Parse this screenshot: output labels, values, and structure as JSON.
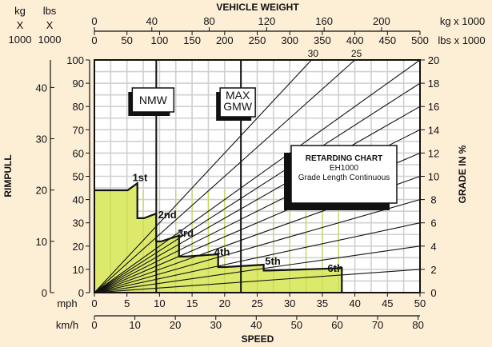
{
  "chart_data": {
    "type": "line",
    "title": "RETARDING CHART",
    "subtitle": "EH1000",
    "note": "Grade Length Continuous",
    "top_axis_title": "VEHICLE WEIGHT",
    "top_axis": {
      "kg_label": [
        "kg",
        "X",
        "1000"
      ],
      "lbs_label": [
        "lbs",
        "X",
        "1000"
      ],
      "kg_unit": "kg x 1000",
      "lbs_unit": "lbs x 1000",
      "kg_ticks": [
        "0",
        "40",
        "80",
        "120",
        "160",
        "200"
      ],
      "kg_values": [
        0,
        40,
        80,
        120,
        160,
        200
      ],
      "lbs_ticks": [
        "0",
        "50",
        "100",
        "150",
        "200",
        "250",
        "300",
        "350",
        "400",
        "450",
        "500"
      ],
      "lbs_values": [
        0,
        50,
        100,
        150,
        200,
        250,
        300,
        350,
        400,
        450,
        500
      ],
      "range_lbs": [
        0,
        500
      ]
    },
    "left_axis": {
      "title": "RIMPULL",
      "kg_ticks": [
        "0",
        "10",
        "20",
        "30",
        "40"
      ],
      "kg_values": [
        0,
        10,
        20,
        30,
        40
      ],
      "lbs_ticks": [
        "0",
        "10",
        "20",
        "30",
        "40",
        "50",
        "60",
        "70",
        "80",
        "90",
        "100"
      ],
      "lbs_values": [
        0,
        10,
        20,
        30,
        40,
        50,
        60,
        70,
        80,
        90,
        100
      ],
      "range_lbs": [
        0,
        100
      ]
    },
    "right_axis": {
      "title": "GRADE IN %",
      "ticks": [
        "0",
        "2",
        "4",
        "6",
        "8",
        "10",
        "12",
        "14",
        "16",
        "18",
        "20"
      ],
      "values": [
        0,
        2,
        4,
        6,
        8,
        10,
        12,
        14,
        16,
        18,
        20
      ]
    },
    "bottom_axis": {
      "title": "SPEED",
      "mph_label": "mph",
      "kmh_label": "km/h",
      "mph_ticks": [
        "0",
        "5",
        "10",
        "15",
        "20",
        "25",
        "30",
        "35",
        "40",
        "45",
        "50"
      ],
      "mph_values": [
        0,
        5,
        10,
        15,
        20,
        25,
        30,
        35,
        40,
        45,
        50
      ],
      "kmh_ticks": [
        "0",
        "10",
        "20",
        "30",
        "40",
        "50",
        "60",
        "70",
        "80"
      ],
      "kmh_values": [
        0,
        10,
        20,
        30,
        40,
        50,
        60,
        70,
        80
      ],
      "range_mph": [
        0,
        50
      ]
    },
    "weight_markers": [
      {
        "label": "NMW",
        "weight_lbs": 95
      },
      {
        "label": "MAX GMW",
        "label_lines": [
          "MAX",
          "GMW"
        ],
        "weight_lbs": 225
      }
    ],
    "gear_labels": [
      {
        "label": "1st",
        "speed_mph": 7,
        "rimpull_lbs": 48
      },
      {
        "label": "2nd",
        "speed_mph": 11.2,
        "rimpull_lbs": 32
      },
      {
        "label": "3rd",
        "speed_mph": 14,
        "rimpull_lbs": 24
      },
      {
        "label": "4th",
        "speed_mph": 19.6,
        "rimpull_lbs": 16
      },
      {
        "label": "5th",
        "speed_mph": 27.4,
        "rimpull_lbs": 12
      },
      {
        "label": "6th",
        "speed_mph": 37,
        "rimpull_lbs": 9
      }
    ],
    "retarding_curve": [
      [
        0,
        44
      ],
      [
        5.1,
        44
      ],
      [
        6.6,
        47
      ],
      [
        6.6,
        32
      ],
      [
        7.6,
        32
      ],
      [
        9.5,
        34
      ],
      [
        9.5,
        22
      ],
      [
        10.2,
        22
      ],
      [
        13,
        24.5
      ],
      [
        13,
        15.5
      ],
      [
        14,
        15.5
      ],
      [
        19,
        16.5
      ],
      [
        19,
        11
      ],
      [
        20.1,
        11
      ],
      [
        26,
        12
      ],
      [
        26,
        9.5
      ],
      [
        26.8,
        9.5
      ],
      [
        38,
        10.5
      ],
      [
        38,
        0
      ]
    ],
    "grade_lines": [
      {
        "grade_pct": 30,
        "labeled": true
      },
      {
        "grade_pct": 25,
        "labeled": true
      },
      {
        "grade_pct": 20
      },
      {
        "grade_pct": 18
      },
      {
        "grade_pct": 16
      },
      {
        "grade_pct": 14
      },
      {
        "grade_pct": 12
      },
      {
        "grade_pct": 10
      },
      {
        "grade_pct": 8
      },
      {
        "grade_pct": 6
      },
      {
        "grade_pct": 4
      },
      {
        "grade_pct": 2
      }
    ],
    "grid": true,
    "colors": {
      "background": "#fdeed6",
      "plot": "#ffffff",
      "fill": "#dde96a",
      "grid": "#d0d0d0",
      "line": "#111111"
    }
  }
}
